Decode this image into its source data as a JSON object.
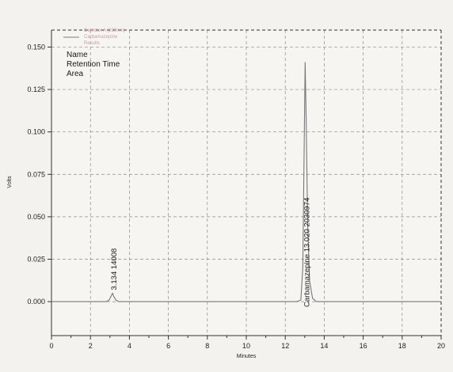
{
  "chart_data": {
    "type": "line",
    "xlabel": "Minutes",
    "ylabel": "Volts",
    "xlim": [
      0,
      20
    ],
    "ylim": [
      -0.02,
      0.16
    ],
    "x_ticks": [
      "0",
      "2",
      "4",
      "6",
      "8",
      "10",
      "12",
      "14",
      "16",
      "18",
      "20"
    ],
    "y_ticks": [
      "0.000",
      "0.025",
      "0.050",
      "0.075",
      "0.100",
      "0.125",
      "0.150"
    ],
    "grid": true,
    "legend_entries": [
      "Detector A (220nm)",
      "Carbamazepine",
      "Results"
    ],
    "key_lines": [
      "Name",
      "Retention Time",
      "Area"
    ],
    "series": [
      {
        "color": "#777777",
        "x": [
          0,
          2.8,
          2.95,
          3.05,
          3.134,
          3.2,
          3.3,
          3.45,
          12.6,
          12.8,
          12.9,
          12.97,
          13.02,
          13.07,
          13.15,
          13.25,
          13.4,
          13.6,
          20
        ],
        "y": [
          0.0,
          0.0,
          0.0008,
          0.003,
          0.005,
          0.003,
          0.001,
          0.0,
          0.0,
          0.001,
          0.02,
          0.09,
          0.141,
          0.11,
          0.045,
          0.012,
          0.002,
          0.0,
          0.0
        ]
      }
    ],
    "annotations": [
      {
        "x": 3.134,
        "y": 0.004,
        "text": "3.134 14008"
      },
      {
        "x": 13.02,
        "y": -0.006,
        "text": "Carbamazepine 13.020 2030974"
      }
    ]
  }
}
